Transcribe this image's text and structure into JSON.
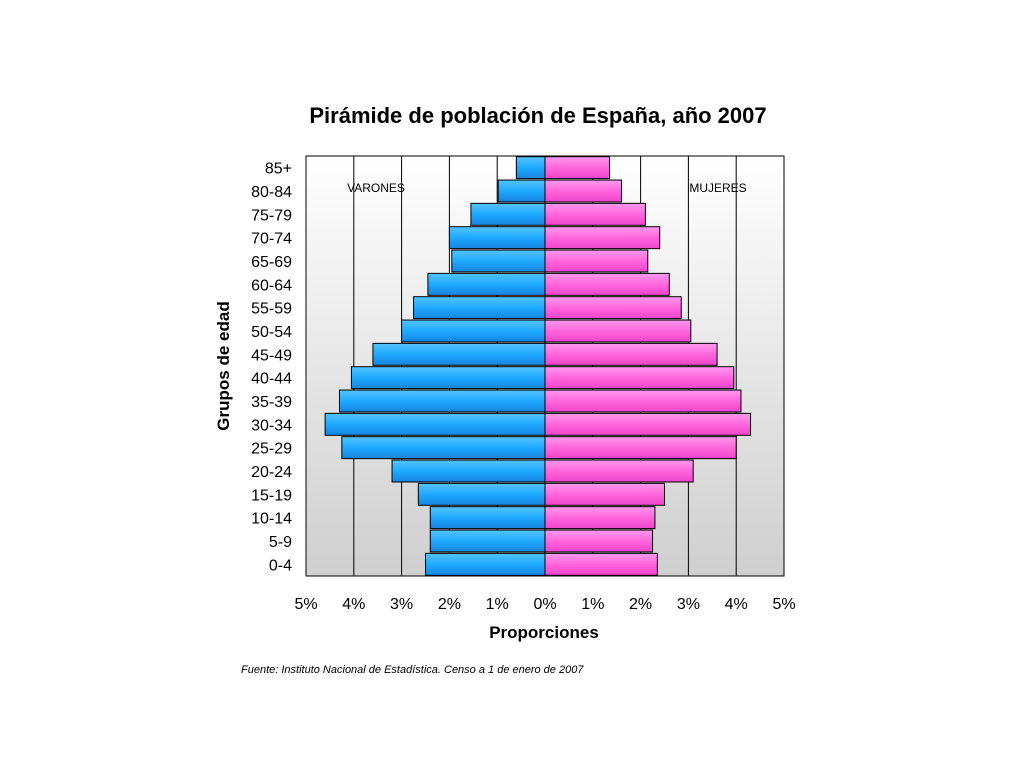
{
  "chart_data": {
    "type": "bar",
    "orientation": "horizontal-pyramid",
    "title": "Pirámide de población de España, año 2007",
    "xlabel": "Proporciones",
    "ylabel": "Grupos de edad",
    "source": "Fuente: Instituto Nacional de Estadística. Censo a 1 de enero de 2007",
    "x_ticks": [
      "5%",
      "4%",
      "3%",
      "2%",
      "1%",
      "0%",
      "1%",
      "2%",
      "3%",
      "4%",
      "5%"
    ],
    "xlim": [
      -5,
      5
    ],
    "grid": "vertical",
    "categories": [
      "0-4",
      "5-9",
      "10-14",
      "15-19",
      "20-24",
      "25-29",
      "30-34",
      "35-39",
      "40-44",
      "45-49",
      "50-54",
      "55-59",
      "60-64",
      "65-69",
      "70-74",
      "75-79",
      "80-84",
      "85+"
    ],
    "series": [
      {
        "name": "VARONES",
        "side": "left",
        "color": "#1fa9ff",
        "values": [
          2.5,
          2.4,
          2.4,
          2.65,
          3.2,
          4.25,
          4.6,
          4.3,
          4.05,
          3.6,
          3.0,
          2.75,
          2.45,
          1.95,
          2.0,
          1.55,
          0.98,
          0.6
        ]
      },
      {
        "name": "MUJERES",
        "side": "right",
        "color": "#ff66dd",
        "values": [
          2.35,
          2.25,
          2.3,
          2.5,
          3.1,
          4.0,
          4.3,
          4.1,
          3.95,
          3.6,
          3.05,
          2.85,
          2.6,
          2.15,
          2.4,
          2.1,
          1.6,
          1.35
        ]
      }
    ],
    "colors": {
      "male": "#1fa9ff",
      "female": "#ff66dd",
      "plot_bg_top": "#ffffff",
      "plot_bg_bottom": "#cfcfcf",
      "gridline": "#000000"
    }
  }
}
